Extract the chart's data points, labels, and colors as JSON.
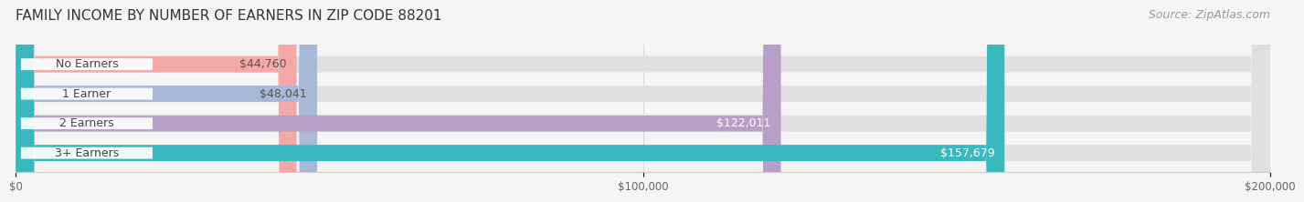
{
  "title": "FAMILY INCOME BY NUMBER OF EARNERS IN ZIP CODE 88201",
  "source": "Source: ZipAtlas.com",
  "categories": [
    "No Earners",
    "1 Earner",
    "2 Earners",
    "3+ Earners"
  ],
  "values": [
    44760,
    48041,
    122011,
    157679
  ],
  "value_labels": [
    "$44,760",
    "$48,041",
    "$122,011",
    "$157,679"
  ],
  "bar_colors": [
    "#f4a9a8",
    "#a8b8d8",
    "#b89fc8",
    "#3ab8c0"
  ],
  "label_colors": [
    "#555555",
    "#555555",
    "#ffffff",
    "#ffffff"
  ],
  "background_color": "#f5f5f5",
  "bar_bg_color": "#e0e0e0",
  "xlim": [
    0,
    200000
  ],
  "xticks": [
    0,
    100000,
    200000
  ],
  "xtick_labels": [
    "$0",
    "$100,000",
    "$200,000"
  ],
  "title_fontsize": 11,
  "source_fontsize": 9,
  "label_fontsize": 9,
  "bar_height": 0.55
}
